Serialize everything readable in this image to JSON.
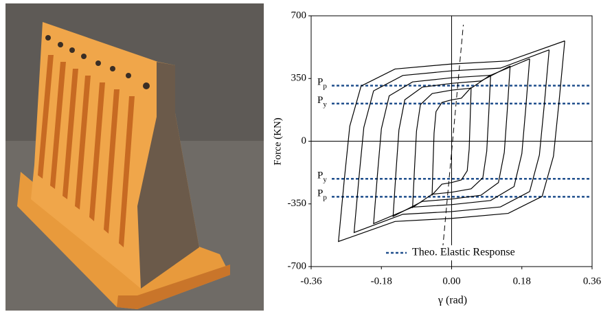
{
  "chart_data": {
    "type": "line",
    "ylabel": "Force (KN)",
    "xlabel": "γ  (rad)",
    "xlim": [
      -0.36,
      0.36
    ],
    "xticks": [
      -0.36,
      -0.18,
      {
        "value": 0,
        "label": "0.00"
      },
      0.18,
      0.36
    ],
    "ylim": [
      -700,
      700
    ],
    "yticks": [
      -700,
      -350,
      0,
      350,
      700
    ],
    "grid": false,
    "legend": "lower right",
    "ref_color": "#1f4e8c",
    "ref_lines": [
      {
        "label": "P",
        "sub": "p",
        "value": 310
      },
      {
        "label": "P",
        "sub": "y",
        "value": 210
      },
      {
        "label": "P",
        "sub": "y",
        "value": -210
      },
      {
        "label": "P",
        "sub": "p",
        "value": -310
      }
    ],
    "series": [
      {
        "color": "#000000",
        "x": [
          0.05,
          0.025,
          0,
          -0.025,
          -0.04,
          -0.045,
          -0.0475,
          -0.05,
          -0.025,
          0,
          0.025,
          0.04,
          0.045,
          0.0475,
          0.05
        ],
        "values": [
          300,
          240,
          231,
          216,
          165,
          45,
          -120,
          -300,
          -240,
          -231,
          -216,
          -165,
          -45,
          120,
          300
        ]
      },
      {
        "color": "#000000",
        "x": [
          0.1,
          0.05,
          0,
          -0.05,
          -0.08,
          -0.09,
          -0.095,
          -0.1,
          -0.05,
          0,
          0.05,
          0.08,
          0.09,
          0.095,
          0.1
        ],
        "values": [
          370,
          296,
          285,
          266,
          204,
          56,
          -148,
          -370,
          -296,
          -285,
          -266,
          -204,
          -56,
          148,
          370
        ]
      },
      {
        "color": "#000000",
        "x": [
          0.15,
          0.075,
          0,
          -0.075,
          -0.12,
          -0.135,
          -0.1425,
          -0.15,
          -0.075,
          0,
          0.075,
          0.12,
          0.135,
          0.1425,
          0.15
        ],
        "values": [
          420,
          336,
          323,
          302,
          231,
          63,
          -168,
          -420,
          -336,
          -323,
          -302,
          -231,
          -63,
          168,
          420
        ]
      },
      {
        "color": "#000000",
        "x": [
          0.2,
          0.1,
          0,
          -0.1,
          -0.16,
          -0.18,
          -0.19,
          -0.2,
          -0.1,
          0,
          0.1,
          0.16,
          0.18,
          0.19,
          0.2
        ],
        "values": [
          460,
          368,
          354,
          331,
          253,
          69,
          -184,
          -460,
          -368,
          -354,
          -331,
          -253,
          -69,
          184,
          460
        ]
      },
      {
        "color": "#000000",
        "x": [
          0.25,
          0.125,
          0,
          -0.125,
          -0.2,
          -0.225,
          -0.2375,
          -0.25,
          -0.125,
          0,
          0.125,
          0.2,
          0.225,
          0.2375,
          0.25
        ],
        "values": [
          510,
          408,
          393,
          367,
          281,
          77,
          -204,
          -510,
          -408,
          -393,
          -367,
          -281,
          -77,
          204,
          510
        ]
      },
      {
        "color": "#000000",
        "x": [
          0.29,
          0.145,
          0,
          -0.145,
          -0.232,
          -0.261,
          -0.2755,
          -0.29,
          -0.145,
          0,
          0.145,
          0.232,
          0.261,
          0.2755,
          0.29
        ],
        "values": [
          560,
          448,
          431,
          403,
          308,
          84,
          -224,
          -560,
          -448,
          -431,
          -403,
          -308,
          -84,
          224,
          560
        ]
      },
      {
        "name": "Theo. Elastic Response",
        "color": "#1f4e8c",
        "dashed": true,
        "x": [
          -0.025,
          0.03
        ],
        "values": [
          -650,
          650
        ]
      }
    ]
  }
}
